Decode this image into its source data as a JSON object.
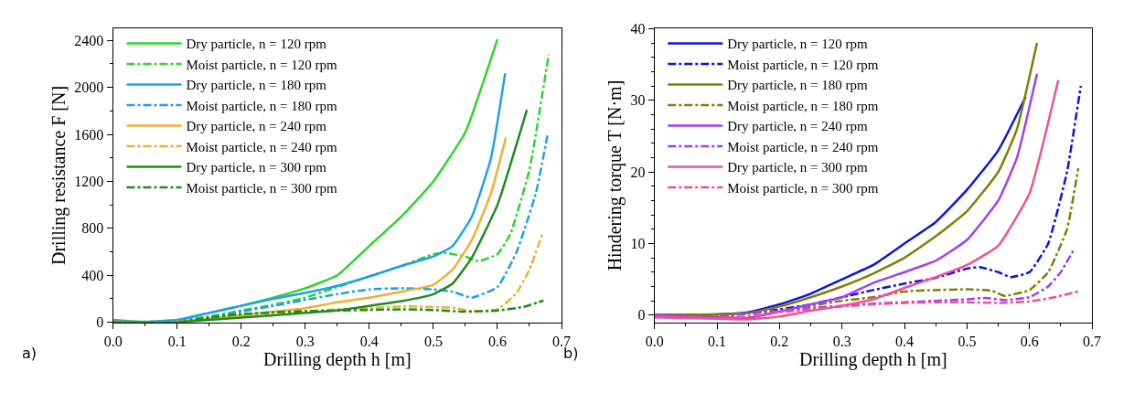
{
  "chart_data": [
    {
      "type": "line",
      "xlabel": "Drilling depth h [m]",
      "ylabel": "Drilling resistance F [N]",
      "xlim": [
        0,
        0.7
      ],
      "xticks": [
        {
          "value": 0,
          "label": "0.0"
        },
        0.1,
        0.2,
        0.3,
        0.4,
        0.5,
        0.6,
        0.7
      ],
      "ylim": [
        0,
        2500
      ],
      "yticks": [
        0,
        400,
        800,
        1200,
        1600,
        2000,
        2400
      ],
      "legend": "top left",
      "marker": "none",
      "annotations": [
        "a)"
      ],
      "series": [
        {
          "name": "Dry particle, n = 120 rpm",
          "color": "#2ed62a",
          "line_style": "solid",
          "x": [
            0,
            0.05,
            0.1,
            0.15,
            0.2,
            0.25,
            0.3,
            0.35,
            0.4,
            0.45,
            0.5,
            0.55,
            0.6
          ],
          "values": [
            20,
            0,
            15,
            80,
            140,
            210,
            290,
            400,
            650,
            900,
            1200,
            1620,
            2410
          ]
        },
        {
          "name": "Moist particle, n = 120 rpm",
          "color": "#2ed62a",
          "line_style": "dashdot",
          "x": [
            0,
            0.05,
            0.1,
            0.15,
            0.2,
            0.25,
            0.3,
            0.35,
            0.4,
            0.45,
            0.5,
            0.52,
            0.55,
            0.57,
            0.6,
            0.62,
            0.65,
            0.68
          ],
          "values": [
            5,
            0,
            10,
            50,
            100,
            150,
            210,
            300,
            390,
            480,
            580,
            590,
            560,
            520,
            580,
            750,
            1300,
            2280
          ]
        },
        {
          "name": "Dry particle, n = 180 rpm",
          "color": "#1e9ff0",
          "line_style": "solid",
          "x": [
            0,
            0.05,
            0.1,
            0.15,
            0.2,
            0.25,
            0.3,
            0.35,
            0.4,
            0.45,
            0.5,
            0.53,
            0.56,
            0.59,
            0.612
          ],
          "values": [
            10,
            5,
            20,
            80,
            140,
            200,
            250,
            310,
            390,
            480,
            560,
            650,
            900,
            1400,
            2120
          ]
        },
        {
          "name": "Moist particle, n = 180 rpm",
          "color": "#1e9ff0",
          "line_style": "dashdot",
          "x": [
            0,
            0.05,
            0.1,
            0.15,
            0.2,
            0.25,
            0.3,
            0.35,
            0.4,
            0.45,
            0.5,
            0.53,
            0.56,
            0.6,
            0.63,
            0.66,
            0.678
          ],
          "values": [
            5,
            0,
            10,
            40,
            90,
            140,
            190,
            240,
            280,
            290,
            280,
            260,
            210,
            300,
            600,
            1100,
            1590
          ]
        },
        {
          "name": "Dry particle, n = 240 rpm",
          "color": "#f0b030",
          "line_style": "solid",
          "x": [
            0,
            0.05,
            0.1,
            0.15,
            0.2,
            0.25,
            0.3,
            0.35,
            0.4,
            0.45,
            0.5,
            0.53,
            0.56,
            0.59,
            0.613
          ],
          "values": [
            5,
            0,
            5,
            30,
            60,
            90,
            120,
            170,
            210,
            260,
            320,
            450,
            700,
            1100,
            1570
          ]
        },
        {
          "name": "Moist particle, n = 240 rpm",
          "color": "#f0b030",
          "line_style": "dashdot",
          "x": [
            0,
            0.1,
            0.15,
            0.2,
            0.25,
            0.3,
            0.35,
            0.4,
            0.45,
            0.5,
            0.53,
            0.56,
            0.6,
            0.63,
            0.65,
            0.67
          ],
          "values": [
            5,
            5,
            30,
            60,
            80,
            95,
            110,
            120,
            135,
            130,
            125,
            95,
            110,
            250,
            450,
            750
          ]
        },
        {
          "name": "Dry particle, n = 300 rpm",
          "color": "#1e8c1e",
          "line_style": "solid",
          "x": [
            0,
            0.1,
            0.15,
            0.2,
            0.25,
            0.3,
            0.35,
            0.4,
            0.45,
            0.5,
            0.53,
            0.56,
            0.6,
            0.646
          ],
          "values": [
            0,
            0,
            20,
            40,
            60,
            80,
            100,
            140,
            180,
            240,
            330,
            550,
            1000,
            1810
          ]
        },
        {
          "name": "Moist particle, n = 300 rpm",
          "color": "#1e8c1e",
          "line_style": "dashdot",
          "x": [
            0,
            0.1,
            0.15,
            0.2,
            0.25,
            0.3,
            0.35,
            0.4,
            0.45,
            0.5,
            0.55,
            0.6,
            0.64,
            0.672
          ],
          "values": [
            0,
            0,
            40,
            70,
            85,
            95,
            100,
            105,
            110,
            105,
            90,
            100,
            130,
            185
          ]
        }
      ]
    },
    {
      "type": "line",
      "xlabel": "Drilling depth h [m]",
      "ylabel": "Hindering torque T [N·m]",
      "xlim": [
        0,
        0.7
      ],
      "xticks": [
        {
          "value": 0,
          "label": "0.0"
        },
        0.1,
        0.2,
        0.3,
        0.4,
        0.5,
        0.6,
        0.7
      ],
      "ylim": [
        -1,
        40
      ],
      "yticks": [
        0,
        10,
        20,
        30,
        40
      ],
      "legend": "top left",
      "marker": "none",
      "annotations": [
        "b)"
      ],
      "series": [
        {
          "name": "Dry particle, n = 120 rpm",
          "color": "#0a14e6",
          "line_style": "solid",
          "x": [
            0,
            0.1,
            0.15,
            0.2,
            0.25,
            0.3,
            0.35,
            0.4,
            0.45,
            0.5,
            0.55,
            0.594
          ],
          "values": [
            0,
            0.1,
            0.4,
            1.5,
            3,
            5,
            7,
            10,
            13,
            17.5,
            23,
            30.5
          ]
        },
        {
          "name": "Moist particle, n = 120 rpm",
          "color": "#0a14e6",
          "line_style": "dashdot",
          "x": [
            0,
            0.1,
            0.15,
            0.2,
            0.25,
            0.3,
            0.35,
            0.4,
            0.45,
            0.5,
            0.52,
            0.55,
            0.57,
            0.6,
            0.63,
            0.66,
            0.682
          ],
          "values": [
            0,
            0,
            0.3,
            0.8,
            1.5,
            2.5,
            3.5,
            4.4,
            5.2,
            6.5,
            6.7,
            6,
            5.3,
            6,
            10,
            20,
            32
          ]
        },
        {
          "name": "Dry particle, n = 180 rpm",
          "color": "#808000",
          "line_style": "solid",
          "x": [
            0,
            0.1,
            0.15,
            0.2,
            0.25,
            0.3,
            0.35,
            0.4,
            0.45,
            0.5,
            0.55,
            0.58,
            0.612
          ],
          "values": [
            0,
            0.1,
            0.3,
            1.2,
            2.5,
            4,
            5.8,
            8,
            11,
            14.5,
            20,
            26,
            38
          ]
        },
        {
          "name": "Moist particle, n = 180 rpm",
          "color": "#808000",
          "line_style": "dashdot",
          "x": [
            0,
            0.1,
            0.15,
            0.2,
            0.25,
            0.3,
            0.35,
            0.4,
            0.45,
            0.5,
            0.54,
            0.56,
            0.6,
            0.63,
            0.66,
            0.678
          ],
          "values": [
            0,
            0,
            0.2,
            0.6,
            1.3,
            2,
            2.5,
            3.3,
            3.5,
            3.6,
            3.4,
            2.7,
            3.5,
            6,
            12,
            20.5
          ]
        },
        {
          "name": "Dry particle, n = 240 rpm",
          "color": "#a040f0",
          "line_style": "solid",
          "x": [
            0,
            0.1,
            0.15,
            0.2,
            0.25,
            0.3,
            0.35,
            0.4,
            0.45,
            0.5,
            0.55,
            0.58,
            0.612
          ],
          "values": [
            0,
            -0.3,
            -0.4,
            0.5,
            1.5,
            2.5,
            4.5,
            6,
            7.6,
            10.5,
            16,
            22,
            33.7
          ]
        },
        {
          "name": "Moist particle, n = 240 rpm",
          "color": "#a040f0",
          "line_style": "dashdot",
          "x": [
            0,
            0.1,
            0.15,
            0.2,
            0.25,
            0.3,
            0.35,
            0.4,
            0.45,
            0.5,
            0.53,
            0.56,
            0.6,
            0.63,
            0.65,
            0.67
          ],
          "values": [
            -0.2,
            -0.3,
            0.3,
            0.6,
            1,
            1.3,
            1.6,
            1.8,
            2,
            2.2,
            2.4,
            2.1,
            2.5,
            4,
            6,
            9
          ]
        },
        {
          "name": "Dry particle, n = 300 rpm",
          "color": "#f0509a",
          "line_style": "solid",
          "x": [
            0,
            0.1,
            0.15,
            0.2,
            0.25,
            0.3,
            0.35,
            0.4,
            0.45,
            0.5,
            0.55,
            0.6,
            0.646
          ],
          "values": [
            -0.3,
            -0.5,
            -0.6,
            -0.2,
            0.6,
            1.3,
            2.2,
            3.8,
            5.3,
            7,
            9.7,
            17,
            32.8
          ]
        },
        {
          "name": "Moist particle, n = 300 rpm",
          "color": "#f0509a",
          "line_style": "dashdot",
          "x": [
            0,
            0.1,
            0.15,
            0.2,
            0.25,
            0.3,
            0.35,
            0.4,
            0.45,
            0.5,
            0.55,
            0.6,
            0.64,
            0.678
          ],
          "values": [
            -0.2,
            -0.4,
            -0.2,
            0.4,
            0.8,
            1.2,
            1.5,
            1.7,
            1.8,
            1.8,
            1.7,
            1.9,
            2.5,
            3.3
          ]
        }
      ]
    }
  ]
}
